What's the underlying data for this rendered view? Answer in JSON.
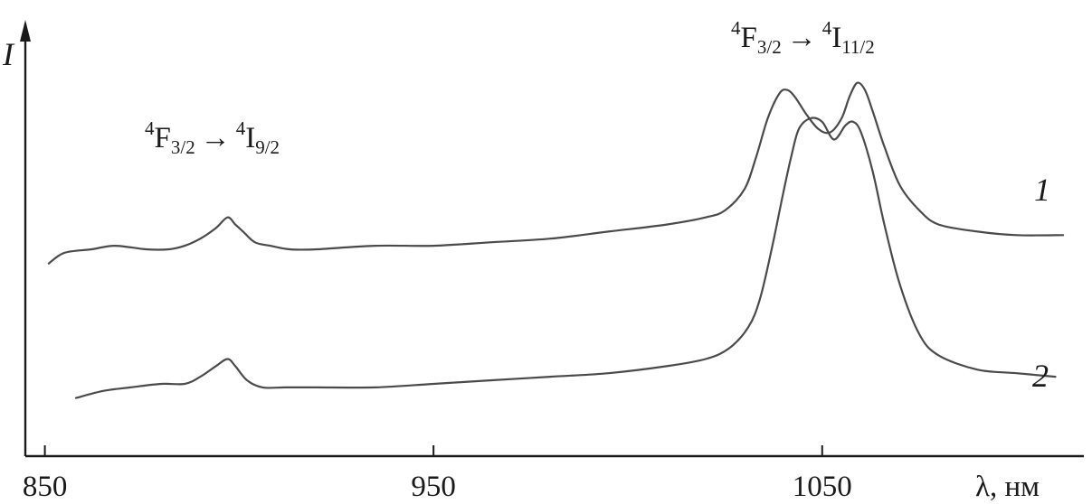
{
  "chart_data": {
    "type": "line",
    "xlabel": "λ, нм",
    "ylabel": "I",
    "xlim": [
      848,
      1115
    ],
    "ylim": [
      0,
      1.0
    ],
    "x_ticks": [
      850,
      950,
      1050
    ],
    "x_tick_labels": [
      "850",
      "950",
      "1050"
    ],
    "grid": false,
    "legend": "none",
    "series": [
      {
        "name": "1",
        "x": [
          851,
          855,
          862,
          868,
          876,
          882,
          886,
          890,
          894,
          897,
          899,
          901,
          904,
          908,
          913,
          920,
          935,
          950,
          965,
          980,
          995,
          1010,
          1020,
          1025,
          1030,
          1033,
          1036,
          1039,
          1041,
          1043,
          1046,
          1049,
          1052,
          1055,
          1057,
          1059,
          1061,
          1063,
          1066,
          1070,
          1075,
          1080,
          1090,
          1100,
          1112
        ],
        "y": [
          0.46,
          0.49,
          0.5,
          0.51,
          0.5,
          0.5,
          0.51,
          0.53,
          0.56,
          0.59,
          0.57,
          0.55,
          0.52,
          0.51,
          0.5,
          0.5,
          0.51,
          0.51,
          0.52,
          0.53,
          0.55,
          0.57,
          0.59,
          0.61,
          0.67,
          0.76,
          0.87,
          0.94,
          0.95,
          0.93,
          0.88,
          0.84,
          0.83,
          0.87,
          0.93,
          0.97,
          0.95,
          0.89,
          0.79,
          0.68,
          0.61,
          0.57,
          0.55,
          0.54,
          0.54
        ]
      },
      {
        "name": "2",
        "x": [
          858,
          865,
          872,
          880,
          886,
          890,
          894,
          897,
          899,
          902,
          906,
          912,
          920,
          935,
          950,
          965,
          980,
          995,
          1010,
          1020,
          1026,
          1031,
          1034,
          1037,
          1040,
          1042,
          1044,
          1047,
          1050,
          1053,
          1056,
          1058,
          1060,
          1063,
          1066,
          1070,
          1075,
          1080,
          1090,
          1100,
          1110
        ],
        "y": [
          0.08,
          0.1,
          0.11,
          0.12,
          0.12,
          0.14,
          0.17,
          0.19,
          0.17,
          0.13,
          0.11,
          0.11,
          0.11,
          0.11,
          0.12,
          0.13,
          0.14,
          0.15,
          0.17,
          0.19,
          0.22,
          0.28,
          0.36,
          0.5,
          0.66,
          0.76,
          0.84,
          0.87,
          0.86,
          0.81,
          0.85,
          0.86,
          0.83,
          0.72,
          0.57,
          0.4,
          0.26,
          0.2,
          0.16,
          0.15,
          0.14
        ]
      }
    ],
    "annotations": [
      {
        "text_sup": "4",
        "text_main": "F",
        "text_sub": "3/2",
        "arrow": "→",
        "text_sup2": "4",
        "text_main2": "I",
        "text_sub2": "9/2"
      },
      {
        "text_sup": "4",
        "text_main": "F",
        "text_sub": "3/2",
        "arrow": "→",
        "text_sup2": "4",
        "text_main2": "I",
        "text_sub2": "11/2"
      }
    ],
    "colors": {
      "axis": "#1a1a1a",
      "curve": "#4a4a4a"
    }
  }
}
